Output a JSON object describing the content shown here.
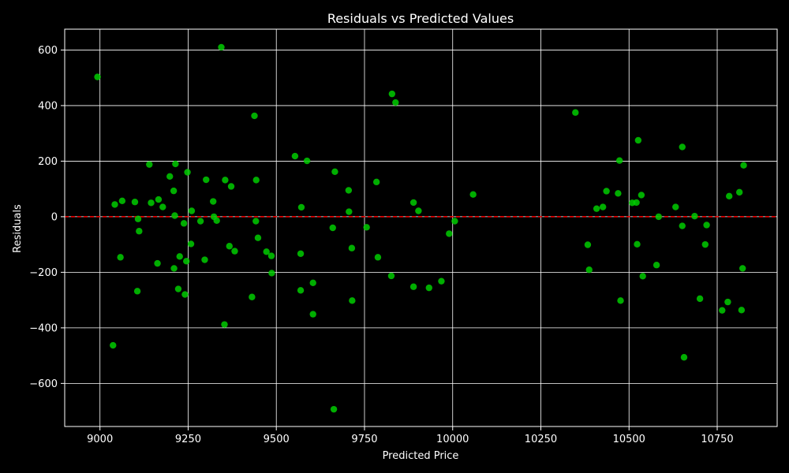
{
  "chart_data": {
    "type": "scatter",
    "title": "Residuals vs Predicted Values",
    "xlabel": "Predicted Price",
    "ylabel": "Residuals",
    "xlim": [
      8900,
      10920
    ],
    "ylim": [
      -755,
      675
    ],
    "xticks": [
      9000,
      9250,
      9500,
      9750,
      10000,
      10250,
      10500,
      10750
    ],
    "xtick_labels": [
      "9000",
      "9250",
      "9500",
      "9750",
      "10000",
      "10250",
      "10500",
      "10750"
    ],
    "yticks": [
      -600,
      -400,
      -200,
      0,
      200,
      400,
      600
    ],
    "ytick_labels": [
      "−600",
      "−400",
      "−200",
      "0",
      "200",
      "400",
      "600"
    ],
    "grid": true,
    "reference_line": {
      "y": 0,
      "style": "dashed",
      "color": "#ff0000"
    },
    "background_color": "#000000",
    "marker_color": "#00cc00",
    "points": [
      {
        "x": 8993,
        "y": 503
      },
      {
        "x": 9037,
        "y": -463
      },
      {
        "x": 9042,
        "y": 44
      },
      {
        "x": 9058,
        "y": -146
      },
      {
        "x": 9063,
        "y": 57
      },
      {
        "x": 9099,
        "y": 53
      },
      {
        "x": 9106,
        "y": -268
      },
      {
        "x": 9108,
        "y": -8
      },
      {
        "x": 9111,
        "y": -52
      },
      {
        "x": 9140,
        "y": 188
      },
      {
        "x": 9145,
        "y": 50
      },
      {
        "x": 9163,
        "y": -168
      },
      {
        "x": 9166,
        "y": 62
      },
      {
        "x": 9178,
        "y": 35
      },
      {
        "x": 9198,
        "y": 145
      },
      {
        "x": 9209,
        "y": 93
      },
      {
        "x": 9210,
        "y": -186
      },
      {
        "x": 9212,
        "y": 4
      },
      {
        "x": 9214,
        "y": 190
      },
      {
        "x": 9222,
        "y": -260
      },
      {
        "x": 9226,
        "y": -143
      },
      {
        "x": 9238,
        "y": -24
      },
      {
        "x": 9241,
        "y": -280
      },
      {
        "x": 9245,
        "y": -160
      },
      {
        "x": 9248,
        "y": 160
      },
      {
        "x": 9258,
        "y": -98
      },
      {
        "x": 9260,
        "y": 21
      },
      {
        "x": 9285,
        "y": -16
      },
      {
        "x": 9297,
        "y": -155
      },
      {
        "x": 9301,
        "y": 133
      },
      {
        "x": 9321,
        "y": 55
      },
      {
        "x": 9323,
        "y": 0
      },
      {
        "x": 9331,
        "y": -14
      },
      {
        "x": 9344,
        "y": 610
      },
      {
        "x": 9355,
        "y": 132
      },
      {
        "x": 9353,
        "y": -388
      },
      {
        "x": 9367,
        "y": -106
      },
      {
        "x": 9372,
        "y": 109
      },
      {
        "x": 9382,
        "y": -124
      },
      {
        "x": 9431,
        "y": -289
      },
      {
        "x": 9438,
        "y": 363
      },
      {
        "x": 9443,
        "y": 132
      },
      {
        "x": 9442,
        "y": -16
      },
      {
        "x": 9448,
        "y": -76
      },
      {
        "x": 9472,
        "y": -126
      },
      {
        "x": 9486,
        "y": -141
      },
      {
        "x": 9487,
        "y": -203
      },
      {
        "x": 9553,
        "y": 218
      },
      {
        "x": 9569,
        "y": -133
      },
      {
        "x": 9569,
        "y": -265
      },
      {
        "x": 9571,
        "y": 34
      },
      {
        "x": 9587,
        "y": 201
      },
      {
        "x": 9604,
        "y": -238
      },
      {
        "x": 9604,
        "y": -351
      },
      {
        "x": 9660,
        "y": -40
      },
      {
        "x": 9663,
        "y": -693
      },
      {
        "x": 9666,
        "y": 162
      },
      {
        "x": 9705,
        "y": 95
      },
      {
        "x": 9706,
        "y": 18
      },
      {
        "x": 9714,
        "y": -113
      },
      {
        "x": 9715,
        "y": -302
      },
      {
        "x": 9756,
        "y": -38
      },
      {
        "x": 9784,
        "y": 125
      },
      {
        "x": 9788,
        "y": -146
      },
      {
        "x": 9826,
        "y": -213
      },
      {
        "x": 9828,
        "y": 442
      },
      {
        "x": 9838,
        "y": 411
      },
      {
        "x": 9889,
        "y": 51
      },
      {
        "x": 9889,
        "y": -252
      },
      {
        "x": 9903,
        "y": 21
      },
      {
        "x": 9933,
        "y": -256
      },
      {
        "x": 9968,
        "y": -232
      },
      {
        "x": 9990,
        "y": -61
      },
      {
        "x": 10006,
        "y": -16
      },
      {
        "x": 10058,
        "y": 80
      },
      {
        "x": 10348,
        "y": 375
      },
      {
        "x": 10383,
        "y": -101
      },
      {
        "x": 10387,
        "y": -191
      },
      {
        "x": 10408,
        "y": 29
      },
      {
        "x": 10426,
        "y": 35
      },
      {
        "x": 10436,
        "y": 92
      },
      {
        "x": 10469,
        "y": 84
      },
      {
        "x": 10473,
        "y": 202
      },
      {
        "x": 10476,
        "y": -302
      },
      {
        "x": 10509,
        "y": 50
      },
      {
        "x": 10521,
        "y": 51
      },
      {
        "x": 10523,
        "y": -99
      },
      {
        "x": 10526,
        "y": 275
      },
      {
        "x": 10535,
        "y": 78
      },
      {
        "x": 10539,
        "y": -214
      },
      {
        "x": 10578,
        "y": -174
      },
      {
        "x": 10584,
        "y": 0
      },
      {
        "x": 10632,
        "y": 35
      },
      {
        "x": 10651,
        "y": 251
      },
      {
        "x": 10651,
        "y": -33
      },
      {
        "x": 10656,
        "y": -506
      },
      {
        "x": 10686,
        "y": 2
      },
      {
        "x": 10701,
        "y": -295
      },
      {
        "x": 10716,
        "y": -100
      },
      {
        "x": 10720,
        "y": -30
      },
      {
        "x": 10764,
        "y": -337
      },
      {
        "x": 10780,
        "y": -307
      },
      {
        "x": 10784,
        "y": 74
      },
      {
        "x": 10813,
        "y": 88
      },
      {
        "x": 10819,
        "y": -336
      },
      {
        "x": 10822,
        "y": -186
      },
      {
        "x": 10825,
        "y": 185
      }
    ]
  }
}
